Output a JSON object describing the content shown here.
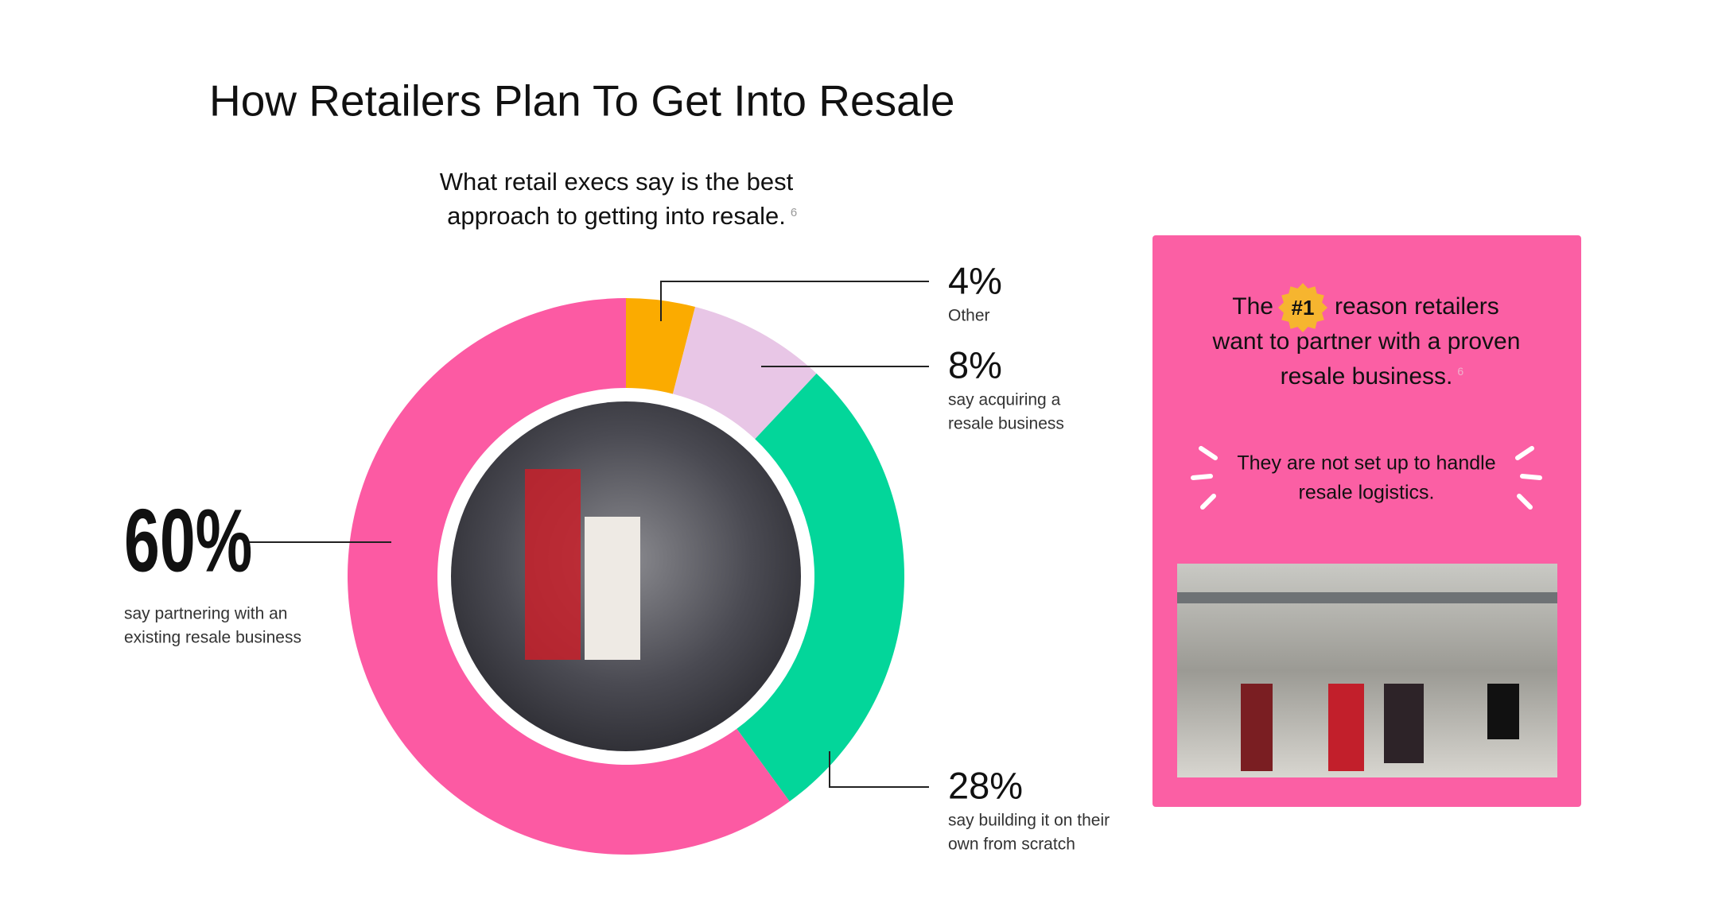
{
  "chart_data": {
    "type": "donut",
    "title": "How Retailers Plan To Get Into Resale",
    "subtitle": [
      "What retail execs say is the best",
      "approach to getting into resale."
    ],
    "subtitle_footnote": "6",
    "categories": [
      [
        "Other"
      ],
      [
        "say acquiring a",
        "resale business"
      ],
      [
        "say building it on their",
        "own from scratch"
      ],
      [
        "say partnering with an",
        "existing resale business"
      ]
    ],
    "values": [
      4,
      8,
      28,
      60
    ],
    "value_labels": [
      "4%",
      "8%",
      "28%",
      "60%"
    ],
    "colors": [
      "#fbab00",
      "#e8c6e6",
      "#03d69a",
      "#fc5aa3"
    ]
  },
  "callout": {
    "heading_start": "The",
    "badge": "#1",
    "heading_lines": [
      "reason retailers",
      "want to partner with a proven",
      "resale business."
    ],
    "footnote": "6",
    "quote": [
      "They are not set up to handle",
      "resale logistics."
    ]
  }
}
